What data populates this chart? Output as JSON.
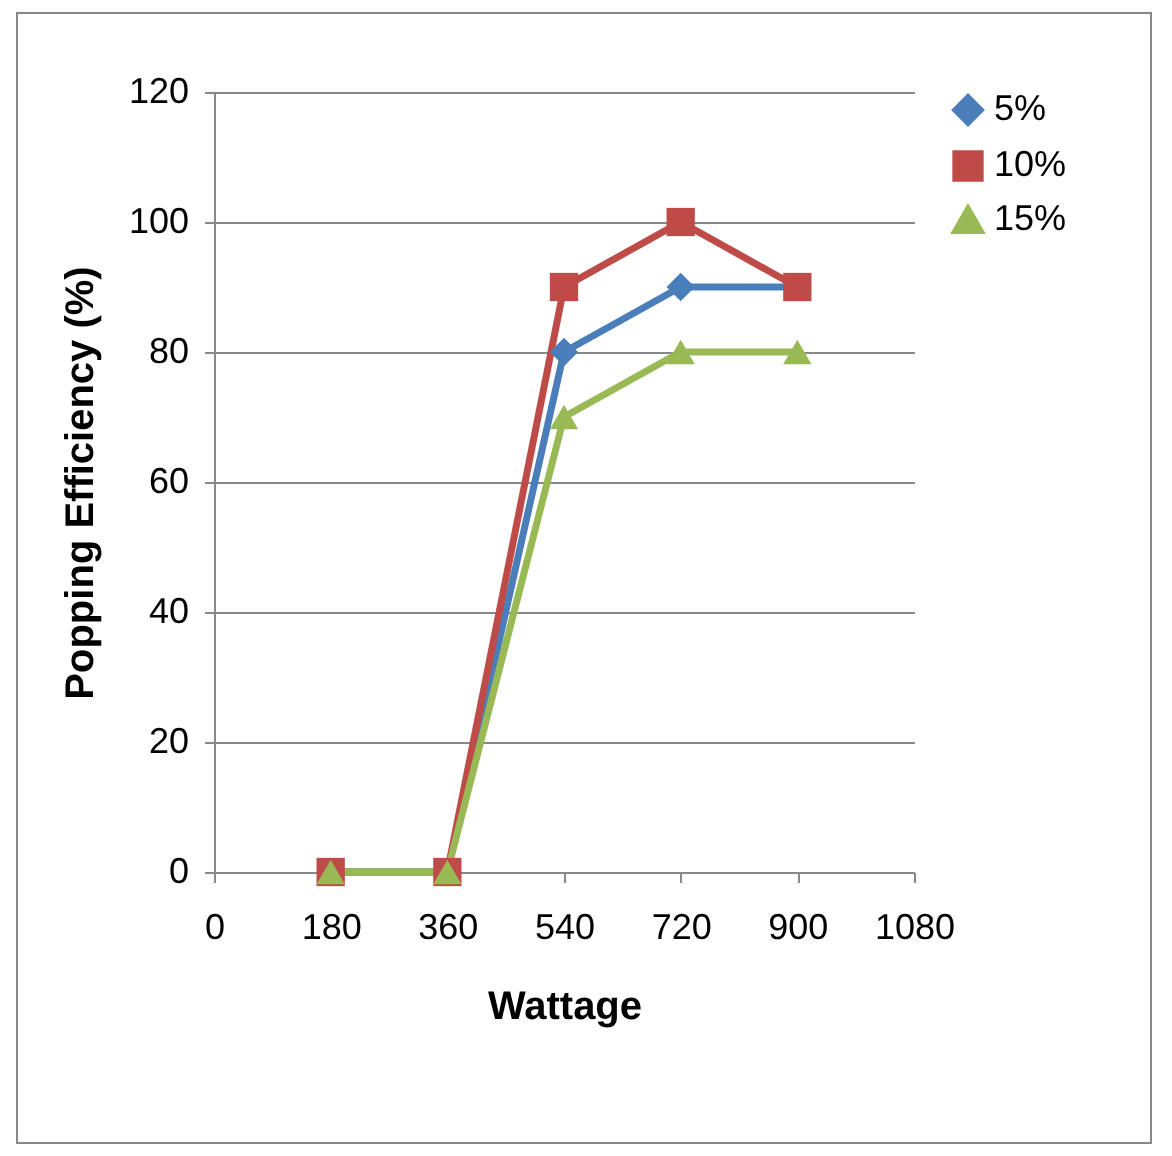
{
  "chart_data": {
    "type": "line",
    "xlabel": "Wattage",
    "ylabel": "Popping Efficiency (%)",
    "x": [
      180,
      360,
      540,
      720,
      900
    ],
    "series": [
      {
        "name": "5%",
        "color": "#4a7ebb",
        "marker": "diamond",
        "values": [
          0,
          0,
          80,
          90,
          90
        ]
      },
      {
        "name": "10%",
        "color": "#be4b48",
        "marker": "square",
        "values": [
          0,
          0,
          90,
          100,
          90
        ]
      },
      {
        "name": "15%",
        "color": "#98b954",
        "marker": "triangle",
        "values": [
          0,
          0,
          70,
          80,
          80
        ]
      }
    ],
    "xlim": [
      0,
      1080
    ],
    "xticks": [
      0,
      180,
      360,
      540,
      720,
      900,
      1080
    ],
    "ylim": [
      0,
      120
    ],
    "yticks": [
      0,
      20,
      40,
      60,
      80,
      100,
      120
    ],
    "grid": "y",
    "legend": "right",
    "line_style": "solid"
  }
}
